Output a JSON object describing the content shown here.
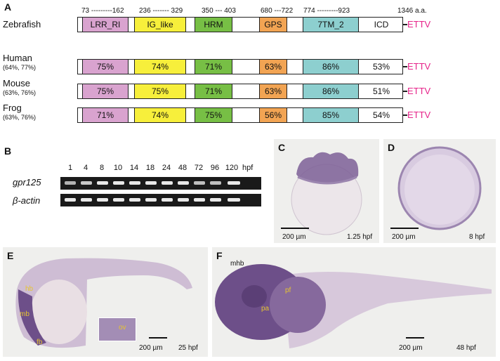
{
  "panel_a": {
    "letter": "A",
    "ranges": [
      "73 ---------162",
      "236 ------- 329",
      "350 --- 403",
      "680 ---722",
      "774 ---------923",
      "1346 a.a."
    ],
    "rows": [
      {
        "name": "Zebrafish",
        "pct": "",
        "cells": [
          "LRR_RI",
          "IG_like",
          "HRM",
          "GPS",
          "7TM_2",
          "ICD"
        ]
      },
      {
        "name": "Human",
        "pct": "(64%, 77%)",
        "cells": [
          "75%",
          "74%",
          "71%",
          "63%",
          "86%",
          "53%"
        ]
      },
      {
        "name": "Mouse",
        "pct": "(63%, 76%)",
        "cells": [
          "75%",
          "75%",
          "71%",
          "63%",
          "86%",
          "51%"
        ]
      },
      {
        "name": "Frog",
        "pct": "(63%, 76%)",
        "cells": [
          "71%",
          "74%",
          "75%",
          "56%",
          "85%",
          "54%"
        ]
      }
    ],
    "tail": "ETTV",
    "colors": {
      "lrr": "#d9a3cf",
      "ig": "#f7ef3b",
      "hrm": "#77bf45",
      "gps": "#f2a453",
      "tm": "#8dcfcf",
      "tail": "#e6248a"
    }
  },
  "panel_b": {
    "letter": "B",
    "lanes": [
      "1",
      "4",
      "8",
      "10",
      "14",
      "18",
      "24",
      "48",
      "72",
      "96",
      "120"
    ],
    "unit": "hpf",
    "genes": [
      "gpr125",
      "β-actin"
    ]
  },
  "panel_c": {
    "letter": "C",
    "scale": "200 µm",
    "stage": "1.25 hpf"
  },
  "panel_d": {
    "letter": "D",
    "scale": "200 µm",
    "stage": "8 hpf"
  },
  "panel_e": {
    "letter": "E",
    "scale": "200 µm",
    "stage": "25 hpf",
    "labels": [
      "hb",
      "mb",
      "fb",
      "ov"
    ]
  },
  "panel_f": {
    "letter": "F",
    "scale": "200 µm",
    "stage": "48 hpf",
    "labels": [
      "mhb",
      "pf",
      "pa"
    ]
  }
}
